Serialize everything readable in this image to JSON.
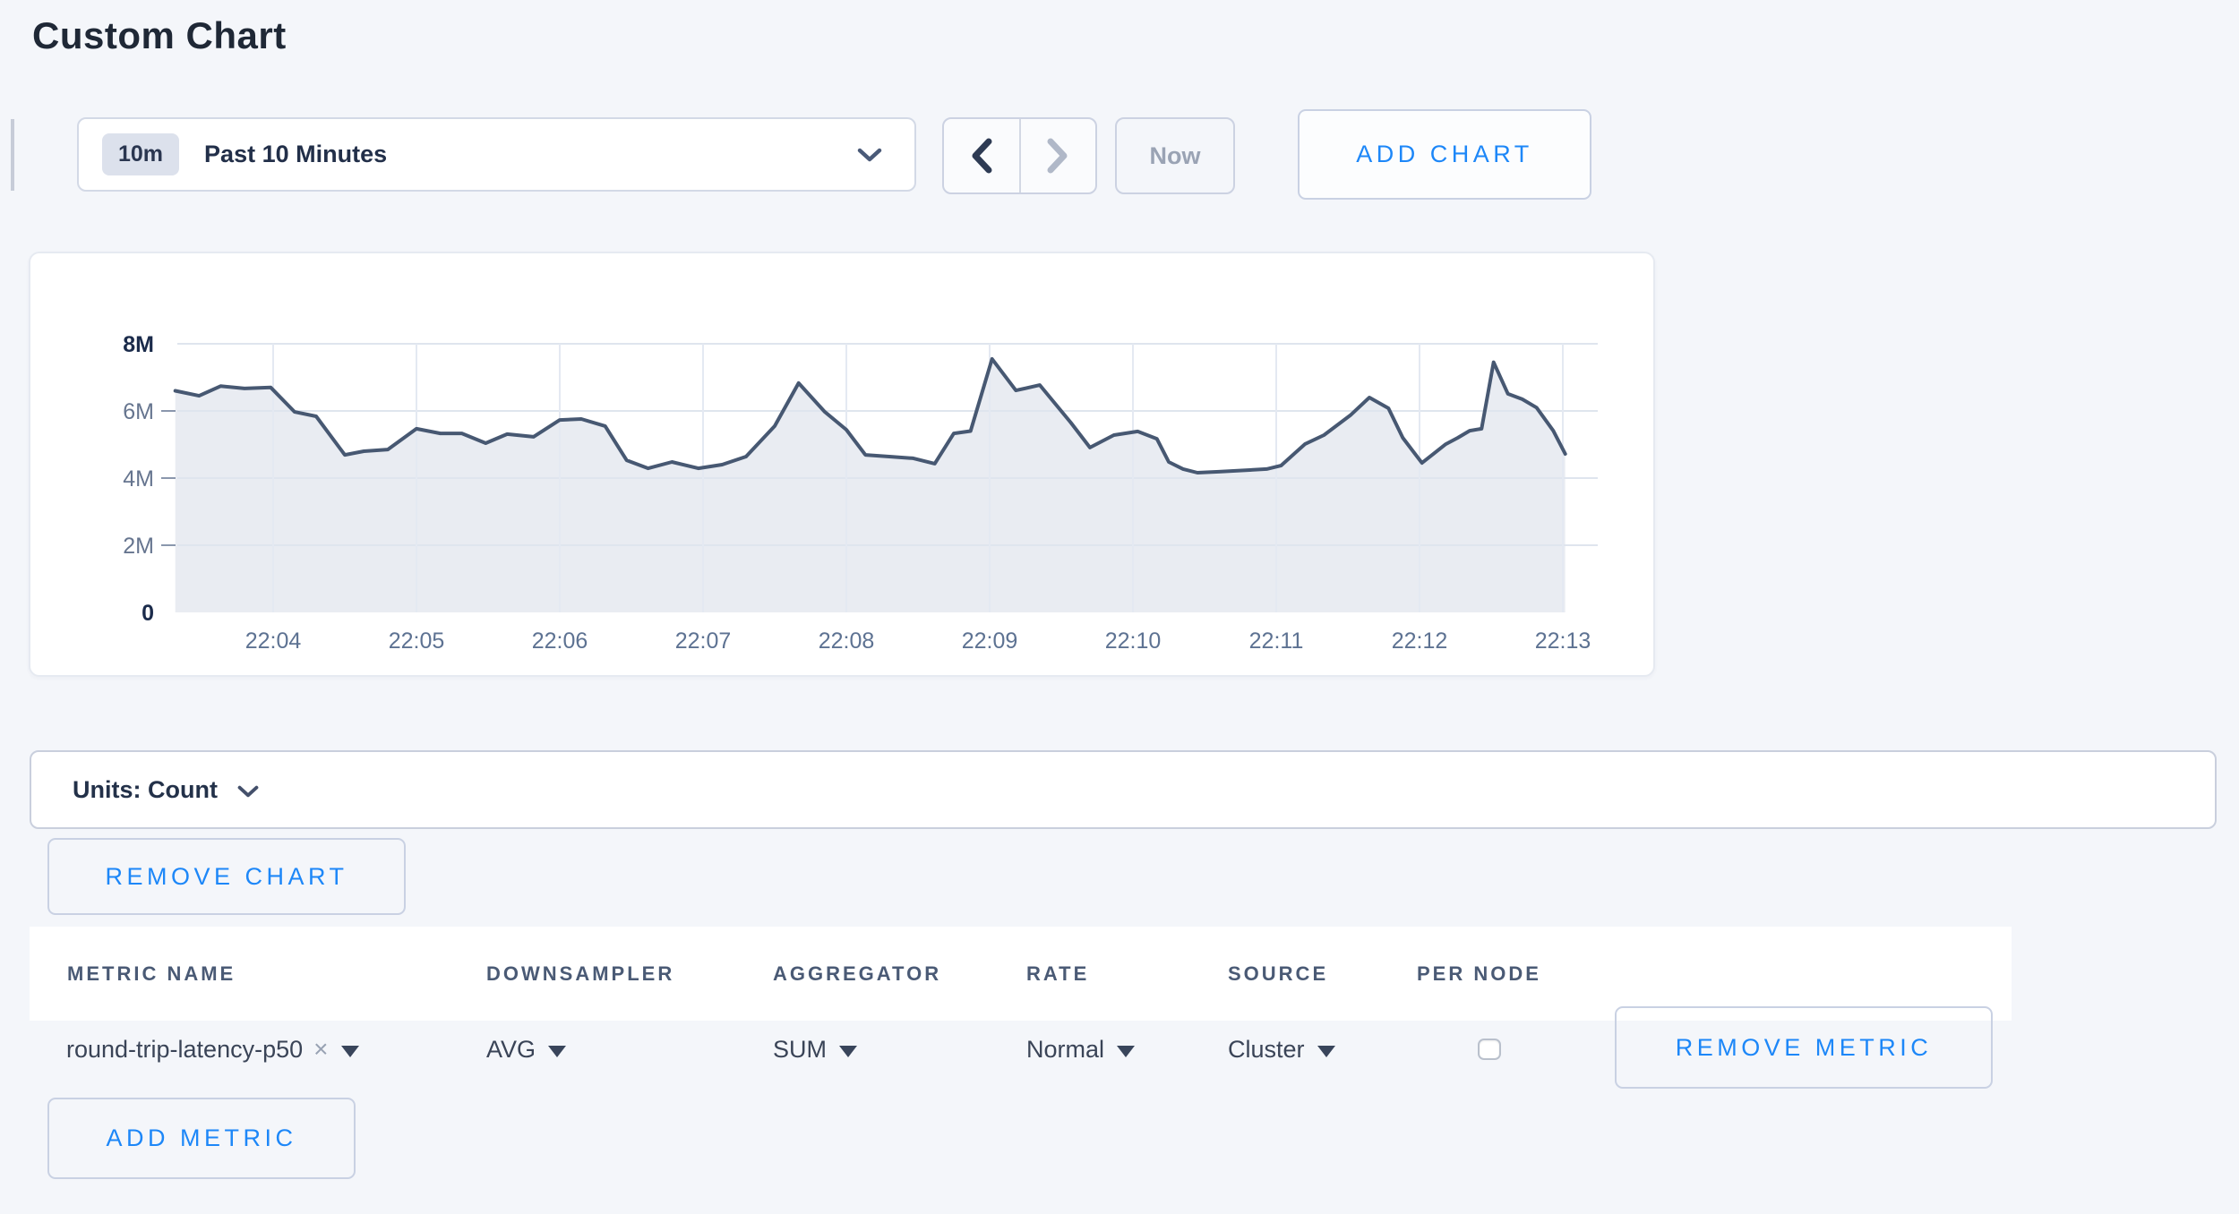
{
  "page": {
    "title": "Custom Chart",
    "background": "#f4f6fa"
  },
  "toolbar": {
    "time_range": {
      "badge": "10m",
      "label": "Past 10 Minutes"
    },
    "now_label": "Now",
    "add_chart_label": "ADD CHART"
  },
  "units": {
    "label": "Units: Count"
  },
  "buttons": {
    "remove_chart": "REMOVE CHART",
    "remove_metric": "REMOVE METRIC",
    "add_metric": "ADD METRIC"
  },
  "table": {
    "headers": [
      "METRIC NAME",
      "DOWNSAMPLER",
      "AGGREGATOR",
      "RATE",
      "SOURCE",
      "PER NODE"
    ],
    "row": {
      "metric_name": "round-trip-latency-p50",
      "clear_label": "×",
      "downsampler": "AVG",
      "aggregator": "SUM",
      "rate": "Normal",
      "source": "Cluster",
      "per_node_checked": false
    }
  },
  "chart_data": {
    "type": "area",
    "title": "",
    "x_ticks": [
      "22:04",
      "22:05",
      "22:06",
      "22:07",
      "22:08",
      "22:09",
      "22:10",
      "22:11",
      "22:12",
      "22:13"
    ],
    "y_ticks": [
      "0",
      "2M",
      "4M",
      "6M",
      "8M"
    ],
    "ylim": [
      0,
      8000000
    ],
    "y_unit": "count",
    "value_unit": "millions",
    "time_zero": "22:03:00",
    "grid": true,
    "legend": "none",
    "line_color": "#475872",
    "fill_color": "#e9ecf2",
    "points": [
      [
        19,
        6.6
      ],
      [
        29,
        6.45
      ],
      [
        38,
        6.74
      ],
      [
        48,
        6.67
      ],
      [
        59,
        6.7
      ],
      [
        69,
        5.97
      ],
      [
        78,
        5.84
      ],
      [
        90,
        4.69
      ],
      [
        98,
        4.8
      ],
      [
        108,
        4.85
      ],
      [
        120,
        5.47
      ],
      [
        130,
        5.33
      ],
      [
        139,
        5.33
      ],
      [
        149,
        5.04
      ],
      [
        158,
        5.31
      ],
      [
        169,
        5.23
      ],
      [
        180,
        5.73
      ],
      [
        189,
        5.76
      ],
      [
        199,
        5.55
      ],
      [
        208,
        4.53
      ],
      [
        217,
        4.29
      ],
      [
        227,
        4.48
      ],
      [
        238,
        4.29
      ],
      [
        248,
        4.4
      ],
      [
        258,
        4.64
      ],
      [
        270,
        5.55
      ],
      [
        280,
        6.83
      ],
      [
        291,
        5.97
      ],
      [
        300,
        5.44
      ],
      [
        308,
        4.69
      ],
      [
        318,
        4.64
      ],
      [
        328,
        4.59
      ],
      [
        337,
        4.43
      ],
      [
        345,
        5.33
      ],
      [
        352,
        5.4
      ],
      [
        361,
        7.55
      ],
      [
        371,
        6.61
      ],
      [
        381,
        6.77
      ],
      [
        394,
        5.65
      ],
      [
        402,
        4.91
      ],
      [
        412,
        5.28
      ],
      [
        422,
        5.39
      ],
      [
        430,
        5.17
      ],
      [
        435,
        4.48
      ],
      [
        441,
        4.27
      ],
      [
        447,
        4.16
      ],
      [
        456,
        4.19
      ],
      [
        476,
        4.27
      ],
      [
        482,
        4.37
      ],
      [
        492,
        5.01
      ],
      [
        500,
        5.28
      ],
      [
        511,
        5.87
      ],
      [
        519,
        6.4
      ],
      [
        527,
        6.08
      ],
      [
        533,
        5.2
      ],
      [
        541,
        4.45
      ],
      [
        551,
        5.01
      ],
      [
        556,
        5.2
      ],
      [
        561,
        5.41
      ],
      [
        566,
        5.47
      ],
      [
        571,
        7.45
      ],
      [
        577,
        6.51
      ],
      [
        583,
        6.35
      ],
      [
        589,
        6.1
      ],
      [
        596,
        5.41
      ],
      [
        601,
        4.72
      ]
    ]
  }
}
